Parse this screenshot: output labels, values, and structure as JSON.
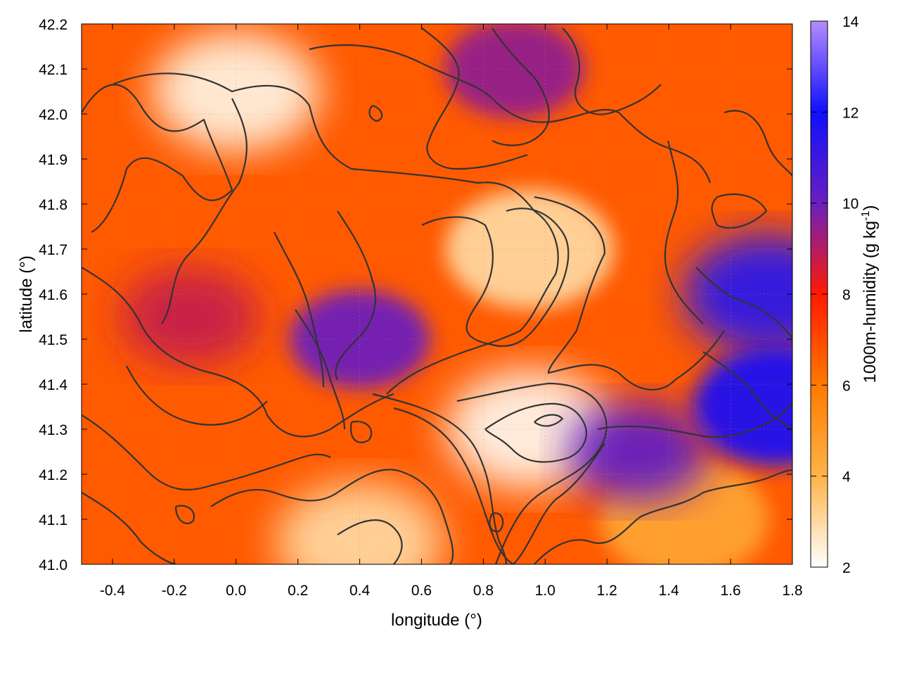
{
  "chart_data": {
    "type": "heatmap",
    "title": "",
    "xlabel": "longitude (°)",
    "ylabel": "latitude (°)",
    "xlim": [
      -0.5,
      1.8
    ],
    "ylim": [
      41.0,
      42.2
    ],
    "x_ticks": [
      "-0.4",
      "-0.2",
      "0.0",
      "0.2",
      "0.4",
      "0.6",
      "0.8",
      "1.0",
      "1.2",
      "1.4",
      "1.6",
      "1.8"
    ],
    "y_ticks": [
      "41.0",
      "41.1",
      "41.2",
      "41.3",
      "41.4",
      "41.5",
      "41.6",
      "41.7",
      "41.8",
      "41.9",
      "42.0",
      "42.1",
      "42.2"
    ],
    "grid": true,
    "colorbar": {
      "label": "1000m-humidity (g kg",
      "label_sup": "-1",
      "label_end": ")",
      "range": [
        2,
        14
      ],
      "ticks": [
        "2",
        "4",
        "6",
        "8",
        "10",
        "12",
        "14"
      ],
      "colormap": [
        {
          "value": 2,
          "color": "#ffffff"
        },
        {
          "value": 4,
          "color": "#ffb347"
        },
        {
          "value": 6,
          "color": "#ff7a00"
        },
        {
          "value": 8,
          "color": "#ff1a00"
        },
        {
          "value": 10,
          "color": "#6a1fc0"
        },
        {
          "value": 12,
          "color": "#1010ff"
        },
        {
          "value": 14,
          "color": "#b48cff"
        }
      ]
    },
    "humidity_features": [
      {
        "region": "dry-northwest",
        "lon": 0.0,
        "lat": 42.05,
        "value": 2.3
      },
      {
        "region": "dry-central",
        "lon": 0.95,
        "lat": 41.7,
        "value": 3.0
      },
      {
        "region": "dry-south",
        "lon": 0.95,
        "lat": 41.3,
        "value": 2.2
      },
      {
        "region": "dry-southeast",
        "lon": 1.45,
        "lat": 41.1,
        "value": 4.5
      },
      {
        "region": "moist-east",
        "lon": 1.72,
        "lat": 41.6,
        "value": 11.5
      },
      {
        "region": "moist-east-2",
        "lon": 1.75,
        "lat": 41.35,
        "value": 11.8
      },
      {
        "region": "moist-coast",
        "lon": 1.3,
        "lat": 41.25,
        "value": 10.2
      },
      {
        "region": "moist-center",
        "lon": 0.4,
        "lat": 41.5,
        "value": 10.0
      },
      {
        "region": "moist-west",
        "lon": -0.15,
        "lat": 41.55,
        "value": 8.8
      },
      {
        "region": "moist-north",
        "lon": 0.9,
        "lat": 42.1,
        "value": 9.5
      },
      {
        "region": "dry-south-center",
        "lon": 0.4,
        "lat": 41.05,
        "value": 3.0
      }
    ]
  }
}
